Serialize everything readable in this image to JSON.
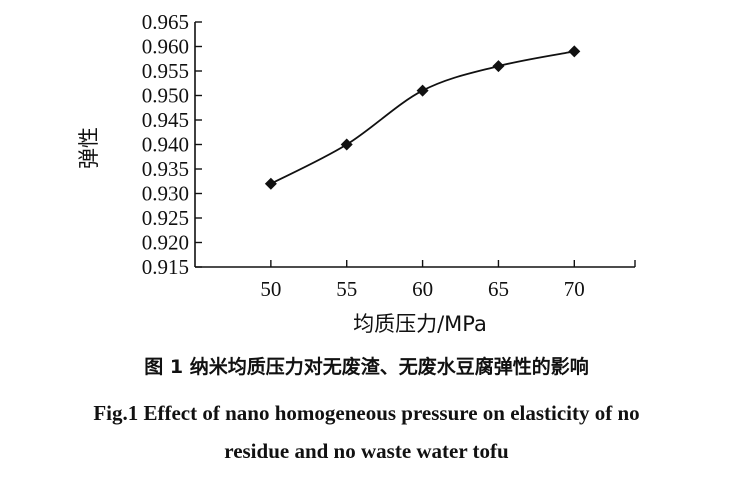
{
  "chart_data": {
    "type": "line",
    "x": [
      50,
      55,
      60,
      65,
      70
    ],
    "series": [
      {
        "values": [
          0.932,
          0.94,
          0.951,
          0.956,
          0.959
        ],
        "marker": "diamond",
        "color": "#111111"
      }
    ],
    "xlabel": "均质压力/MPa",
    "ylabel": "弹性",
    "xlim": [
      45,
      74
    ],
    "ylim": [
      0.915,
      0.965
    ],
    "xticks": [
      "50",
      "55",
      "60",
      "65",
      "70"
    ],
    "yticks": [
      "0.915",
      "0.920",
      "0.925",
      "0.930",
      "0.935",
      "0.940",
      "0.945",
      "0.950",
      "0.955",
      "0.960",
      "0.965"
    ],
    "grid": false
  },
  "caption": {
    "zh": "图 1   纳米均质压力对无废渣、无废水豆腐弹性的影响",
    "en_line1": "Fig.1   Effect of nano homogeneous pressure on elasticity of no",
    "en_line2": "residue and no waste water tofu"
  }
}
